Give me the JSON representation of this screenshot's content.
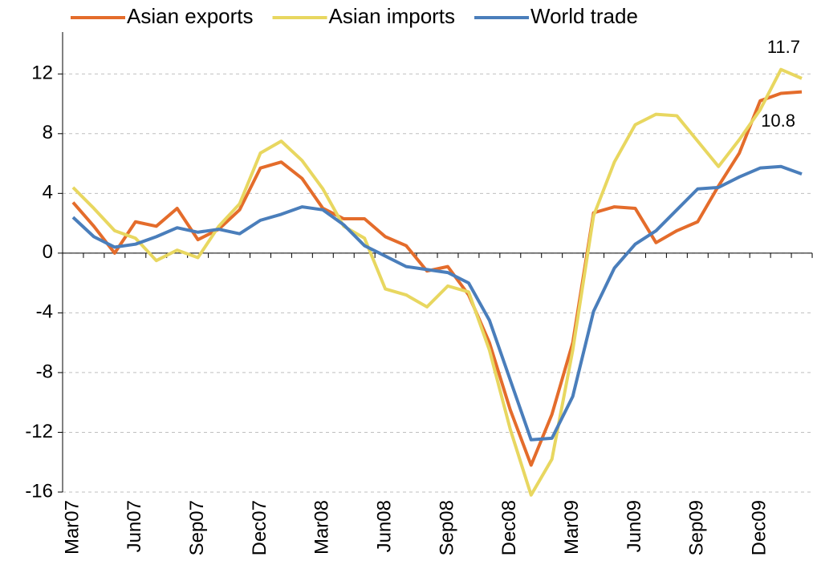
{
  "chart_data": {
    "type": "line",
    "categories": [
      "Mar07",
      null,
      null,
      "Jun07",
      null,
      null,
      "Sep07",
      null,
      null,
      "Dec07",
      null,
      null,
      "Mar08",
      null,
      null,
      "Jun08",
      null,
      null,
      "Sep08",
      null,
      null,
      "Dec08",
      null,
      null,
      "Mar09",
      null,
      null,
      "Jun09",
      null,
      null,
      "Sep09",
      null,
      null,
      "Dec09",
      null,
      null
    ],
    "series": [
      {
        "name": "Asian exports",
        "color": "#e46c2b",
        "values": [
          3.4,
          1.8,
          0.0,
          2.1,
          1.8,
          3.0,
          0.9,
          1.6,
          2.9,
          5.7,
          6.1,
          5.0,
          3.0,
          2.3,
          2.3,
          1.1,
          0.5,
          -1.2,
          -0.9,
          -2.8,
          -6.0,
          -10.5,
          -14.2,
          -10.8,
          -6.0,
          2.7,
          3.1,
          3.0,
          0.7,
          1.5,
          2.1,
          4.5,
          6.7,
          10.2,
          10.7,
          10.8
        ]
      },
      {
        "name": "Asian imports",
        "color": "#e8d760",
        "values": [
          4.4,
          3.0,
          1.5,
          1.0,
          -0.5,
          0.2,
          -0.3,
          1.8,
          3.3,
          6.7,
          7.5,
          6.2,
          4.3,
          1.8,
          1.0,
          -2.4,
          -2.8,
          -3.6,
          -2.2,
          -2.6,
          -6.5,
          -11.8,
          -16.2,
          -13.8,
          -6.5,
          2.5,
          6.1,
          8.6,
          9.3,
          9.2,
          7.5,
          5.8,
          7.6,
          9.6,
          12.3,
          11.7
        ]
      },
      {
        "name": "World trade",
        "color": "#4a7ebb",
        "values": [
          2.4,
          1.1,
          0.4,
          0.6,
          1.1,
          1.7,
          1.4,
          1.6,
          1.3,
          2.2,
          2.6,
          3.1,
          2.9,
          1.9,
          0.5,
          -0.2,
          -0.9,
          -1.1,
          -1.3,
          -2.0,
          -4.5,
          -8.5,
          -12.5,
          -12.4,
          -9.6,
          -3.9,
          -1.0,
          0.6,
          1.5,
          2.9,
          4.3,
          4.4,
          5.1,
          5.7,
          5.8,
          5.3
        ]
      }
    ],
    "ylim": [
      -16,
      14
    ],
    "yticks": [
      12,
      8,
      4,
      0,
      -4,
      -8,
      -12,
      -16
    ],
    "grid": true,
    "legend": "top"
  }
}
